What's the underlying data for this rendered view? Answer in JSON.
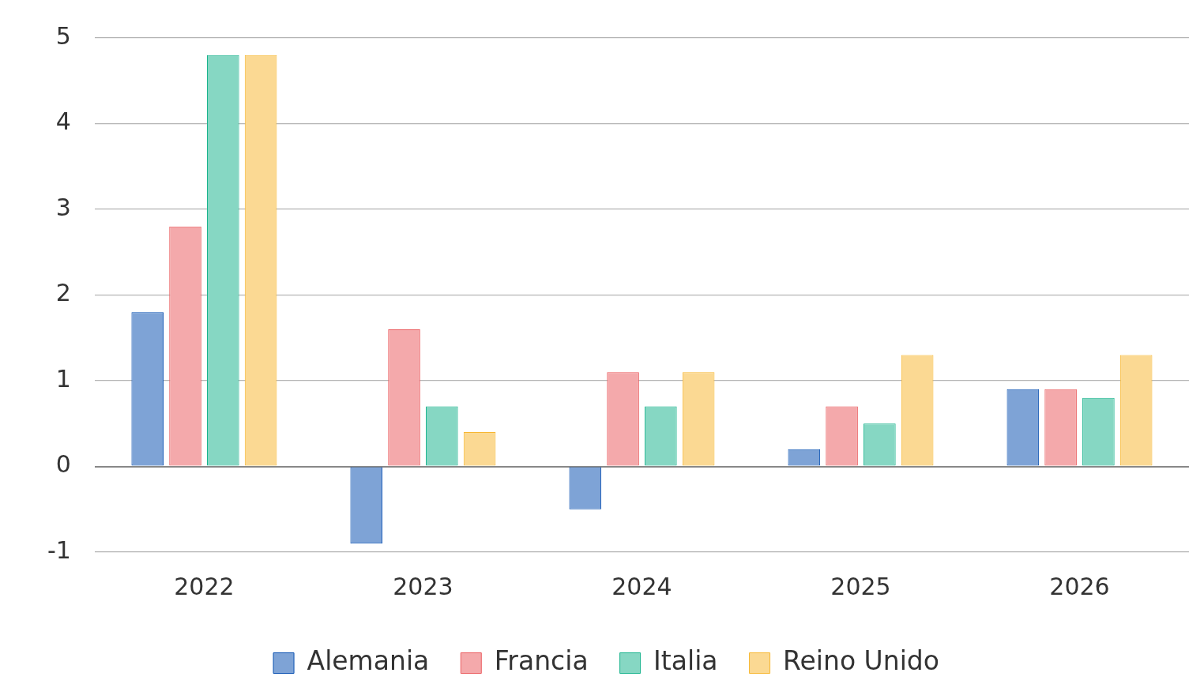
{
  "chart_data": {
    "type": "bar",
    "categories": [
      "2022",
      "2023",
      "2024",
      "2025",
      "2026"
    ],
    "series": [
      {
        "name": "Alemania",
        "color": "#7ea3d6",
        "values": [
          1.8,
          -0.9,
          -0.5,
          0.2,
          0.9
        ]
      },
      {
        "name": "Francia",
        "color": "#f4a9ab",
        "values": [
          2.8,
          1.6,
          1.1,
          0.7,
          0.9
        ]
      },
      {
        "name": "Italia",
        "color": "#86d7c3",
        "values": [
          4.8,
          0.7,
          0.7,
          0.5,
          0.8
        ]
      },
      {
        "name": "Reino Unido",
        "color": "#fbd993",
        "values": [
          4.8,
          0.4,
          1.1,
          1.3,
          1.3
        ]
      }
    ],
    "ylim": [
      -1,
      5
    ],
    "yticks": [
      -1,
      0,
      1,
      2,
      3,
      4,
      5
    ],
    "grid": "y",
    "legend": "bottom"
  }
}
